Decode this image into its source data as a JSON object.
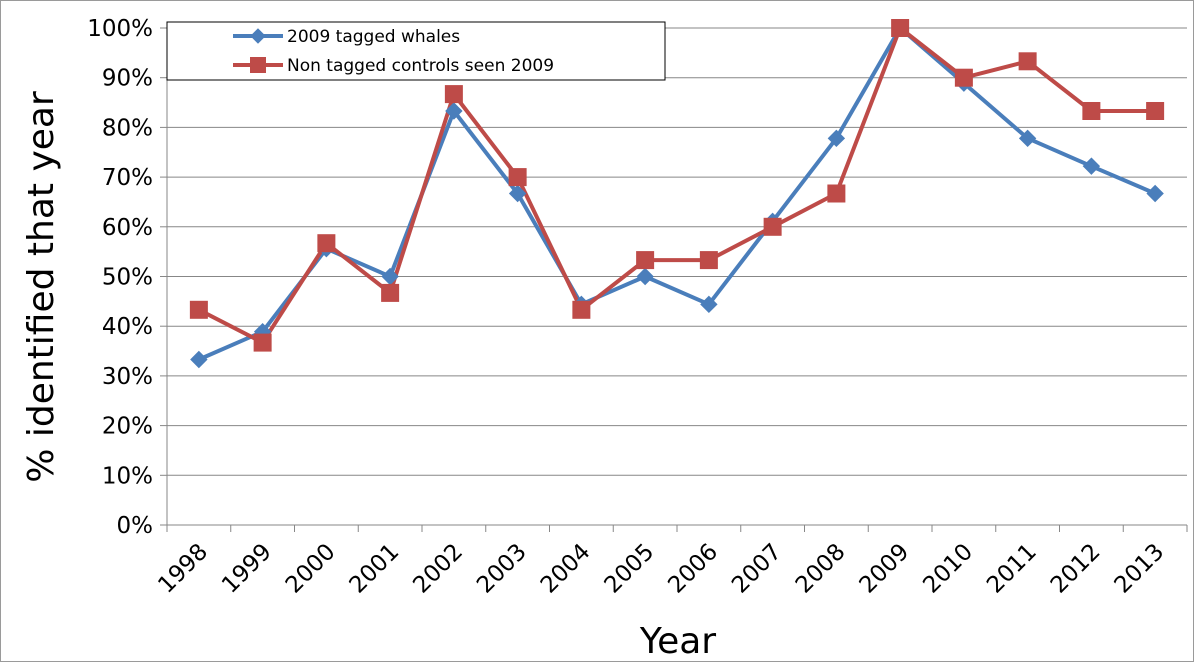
{
  "colors": {
    "series_1": "#4a7ebb",
    "series_2": "#be4b48",
    "gridline": "#878787",
    "axis": "#878787"
  },
  "chart_data": {
    "type": "line",
    "title": "",
    "xlabel": "Year",
    "ylabel": "% identified that year",
    "categories": [
      "1998",
      "1999",
      "2000",
      "2001",
      "2002",
      "2003",
      "2004",
      "2005",
      "2006",
      "2007",
      "2008",
      "2009",
      "2010",
      "2011",
      "2012",
      "2013"
    ],
    "ylim": [
      0,
      100
    ],
    "yticks": [
      "0%",
      "10%",
      "20%",
      "30%",
      "40%",
      "50%",
      "60%",
      "70%",
      "80%",
      "90%",
      "100%"
    ],
    "grid": true,
    "legend_position": "top-left",
    "series": [
      {
        "name": "2009 tagged whales",
        "marker": "diamond",
        "color": "#4a7ebb",
        "values": [
          33.3,
          38.9,
          55.6,
          50.0,
          83.3,
          66.7,
          44.4,
          50.0,
          44.4,
          61.1,
          77.8,
          100.0,
          88.9,
          77.8,
          72.2,
          66.7
        ]
      },
      {
        "name": "Non tagged controls seen 2009",
        "marker": "square",
        "color": "#be4b48",
        "values": [
          43.3,
          36.7,
          56.7,
          46.7,
          86.7,
          70.0,
          43.3,
          53.3,
          53.3,
          60.0,
          66.7,
          100.0,
          90.0,
          93.3,
          83.3,
          83.3
        ]
      }
    ]
  }
}
